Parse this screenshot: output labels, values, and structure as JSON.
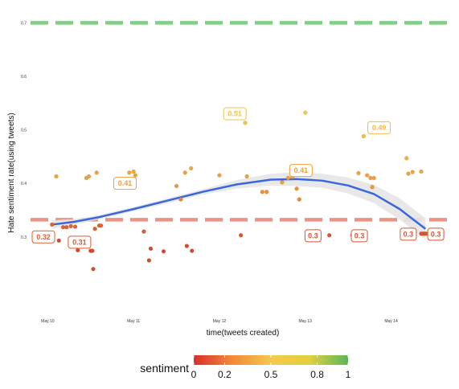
{
  "chart_data": {
    "type": "scatter",
    "title": "",
    "xlabel": "time(tweets created)",
    "ylabel": "Hate sentiment rate(using tweets)",
    "x_tick_labels": [
      "May 10",
      "May 11",
      "May 12",
      "May 13",
      "May 14"
    ],
    "x_tick_values": [
      10,
      11,
      12,
      13,
      14
    ],
    "xlim": [
      9.8,
      14.8
    ],
    "y_tick_labels": [
      "0.3",
      "0.4",
      "0.5",
      "0.6",
      "0.7"
    ],
    "y_tick_values": [
      0.3,
      0.4,
      0.5,
      0.6,
      0.7
    ],
    "ylim": [
      0.16,
      0.72
    ],
    "grid": false,
    "reference_lines": [
      {
        "y": 0.7,
        "color": "#7fcf85",
        "style": "dashed"
      },
      {
        "y": 0.332,
        "color": "#eb9385",
        "style": "dashed"
      }
    ],
    "points": [
      {
        "x": 10.05,
        "y": 0.323
      },
      {
        "x": 10.1,
        "y": 0.413
      },
      {
        "x": 10.13,
        "y": 0.293
      },
      {
        "x": 10.18,
        "y": 0.318
      },
      {
        "x": 10.22,
        "y": 0.318
      },
      {
        "x": 10.27,
        "y": 0.32
      },
      {
        "x": 10.32,
        "y": 0.319
      },
      {
        "x": 10.35,
        "y": 0.275
      },
      {
        "x": 10.42,
        "y": 0.29
      },
      {
        "x": 10.45,
        "y": 0.41
      },
      {
        "x": 10.48,
        "y": 0.413
      },
      {
        "x": 10.5,
        "y": 0.274
      },
      {
        "x": 10.52,
        "y": 0.274
      },
      {
        "x": 10.53,
        "y": 0.24
      },
      {
        "x": 10.55,
        "y": 0.315
      },
      {
        "x": 10.57,
        "y": 0.42
      },
      {
        "x": 10.6,
        "y": 0.321
      },
      {
        "x": 10.62,
        "y": 0.321
      },
      {
        "x": 10.95,
        "y": 0.42
      },
      {
        "x": 11.0,
        "y": 0.422
      },
      {
        "x": 11.02,
        "y": 0.415
      },
      {
        "x": 11.12,
        "y": 0.31
      },
      {
        "x": 11.18,
        "y": 0.256
      },
      {
        "x": 11.2,
        "y": 0.278
      },
      {
        "x": 11.35,
        "y": 0.273
      },
      {
        "x": 11.5,
        "y": 0.395
      },
      {
        "x": 11.55,
        "y": 0.37
      },
      {
        "x": 11.6,
        "y": 0.42
      },
      {
        "x": 11.62,
        "y": 0.283
      },
      {
        "x": 11.67,
        "y": 0.428
      },
      {
        "x": 11.68,
        "y": 0.274
      },
      {
        "x": 12.0,
        "y": 0.415
      },
      {
        "x": 12.25,
        "y": 0.303
      },
      {
        "x": 12.3,
        "y": 0.513
      },
      {
        "x": 12.32,
        "y": 0.413
      },
      {
        "x": 12.5,
        "y": 0.384
      },
      {
        "x": 12.55,
        "y": 0.384
      },
      {
        "x": 12.73,
        "y": 0.402
      },
      {
        "x": 12.8,
        "y": 0.41
      },
      {
        "x": 12.85,
        "y": 0.412
      },
      {
        "x": 12.9,
        "y": 0.39
      },
      {
        "x": 12.93,
        "y": 0.37
      },
      {
        "x": 13.0,
        "y": 0.532
      },
      {
        "x": 13.28,
        "y": 0.303
      },
      {
        "x": 13.55,
        "y": 0.303
      },
      {
        "x": 13.62,
        "y": 0.419
      },
      {
        "x": 13.68,
        "y": 0.488
      },
      {
        "x": 13.72,
        "y": 0.415
      },
      {
        "x": 13.76,
        "y": 0.41
      },
      {
        "x": 13.78,
        "y": 0.393
      },
      {
        "x": 13.8,
        "y": 0.41
      },
      {
        "x": 14.18,
        "y": 0.447
      },
      {
        "x": 14.2,
        "y": 0.418
      },
      {
        "x": 14.25,
        "y": 0.421
      },
      {
        "x": 14.35,
        "y": 0.422
      },
      {
        "x": 14.35,
        "y": 0.306
      },
      {
        "x": 14.37,
        "y": 0.306
      },
      {
        "x": 14.39,
        "y": 0.306
      },
      {
        "x": 14.41,
        "y": 0.306
      }
    ],
    "smooth_line": {
      "x": [
        10.05,
        10.3,
        10.6,
        11.0,
        11.4,
        11.8,
        12.2,
        12.6,
        12.9,
        13.2,
        13.5,
        13.8,
        14.1,
        14.4
      ],
      "y": [
        0.323,
        0.328,
        0.337,
        0.352,
        0.368,
        0.384,
        0.398,
        0.407,
        0.408,
        0.405,
        0.396,
        0.38,
        0.352,
        0.315
      ],
      "band_upper": [
        0.331,
        0.333,
        0.341,
        0.356,
        0.372,
        0.389,
        0.406,
        0.418,
        0.421,
        0.418,
        0.411,
        0.397,
        0.372,
        0.335
      ],
      "band_lower": [
        0.315,
        0.323,
        0.333,
        0.348,
        0.363,
        0.379,
        0.39,
        0.396,
        0.395,
        0.392,
        0.381,
        0.363,
        0.332,
        0.295
      ],
      "color": "#3a66e0",
      "band_color": "#e5e5e5"
    },
    "labels": [
      {
        "text": "0.32",
        "x": 9.95,
        "y": 0.3
      },
      {
        "text": "0.31",
        "x": 10.37,
        "y": 0.29
      },
      {
        "text": "0.41",
        "x": 10.9,
        "y": 0.4
      },
      {
        "text": "0.51",
        "x": 12.18,
        "y": 0.53
      },
      {
        "text": "0.41",
        "x": 12.95,
        "y": 0.424
      },
      {
        "text": "0.3",
        "x": 13.09,
        "y": 0.302
      },
      {
        "text": "0.3",
        "x": 13.63,
        "y": 0.302
      },
      {
        "text": "0.49",
        "x": 13.86,
        "y": 0.504
      },
      {
        "text": "0.3",
        "x": 14.2,
        "y": 0.305
      },
      {
        "text": "0.3",
        "x": 14.52,
        "y": 0.305
      }
    ],
    "legend": {
      "title": "sentiment",
      "tick_labels": [
        "0",
        "0.2",
        "0.5",
        "0.8",
        "1"
      ],
      "tick_values": [
        0,
        0.2,
        0.5,
        0.8,
        1
      ],
      "colors": [
        "#d73027",
        "#f08a3a",
        "#f5c84c",
        "#e3cf3e",
        "#5ab75a"
      ]
    }
  }
}
